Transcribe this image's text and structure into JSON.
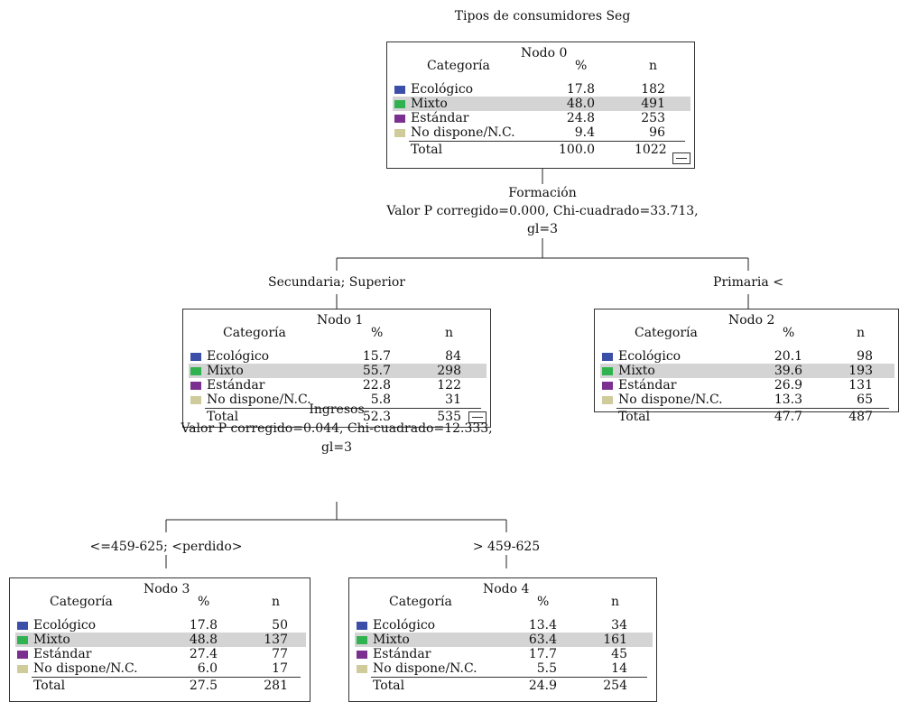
{
  "title": "Tipos de consumidores Seg",
  "legend_colors": {
    "Ecológico": "#3b4fa8",
    "Mixto": "#2fb24f",
    "Estándar": "#7b2f8e",
    "No dispone/N.C.": "#cfcb9a"
  },
  "header": {
    "categoria": "Categoría",
    "pct": "%",
    "n": "n"
  },
  "nodes": {
    "n0": {
      "name": "Nodo 0",
      "rows": [
        {
          "cat": "Ecológico",
          "pct": "17.8",
          "n": "182"
        },
        {
          "cat": "Mixto",
          "pct": "48.0",
          "n": "491"
        },
        {
          "cat": "Estándar",
          "pct": "24.8",
          "n": "253"
        },
        {
          "cat": "No dispone/N.C.",
          "pct": "9.4",
          "n": "96"
        }
      ],
      "total": {
        "label": "Total",
        "pct": "100.0",
        "n": "1022"
      }
    },
    "n1": {
      "name": "Nodo 1",
      "rows": [
        {
          "cat": "Ecológico",
          "pct": "15.7",
          "n": "84"
        },
        {
          "cat": "Mixto",
          "pct": "55.7",
          "n": "298"
        },
        {
          "cat": "Estándar",
          "pct": "22.8",
          "n": "122"
        },
        {
          "cat": "No dispone/N.C.",
          "pct": "5.8",
          "n": "31"
        }
      ],
      "total": {
        "label": "Total",
        "pct": "52.3",
        "n": "535"
      }
    },
    "n2": {
      "name": "Nodo 2",
      "rows": [
        {
          "cat": "Ecológico",
          "pct": "20.1",
          "n": "98"
        },
        {
          "cat": "Mixto",
          "pct": "39.6",
          "n": "193"
        },
        {
          "cat": "Estándar",
          "pct": "26.9",
          "n": "131"
        },
        {
          "cat": "No dispone/N.C.",
          "pct": "13.3",
          "n": "65"
        }
      ],
      "total": {
        "label": "Total",
        "pct": "47.7",
        "n": "487"
      }
    },
    "n3": {
      "name": "Nodo 3",
      "rows": [
        {
          "cat": "Ecológico",
          "pct": "17.8",
          "n": "50"
        },
        {
          "cat": "Mixto",
          "pct": "48.8",
          "n": "137"
        },
        {
          "cat": "Estándar",
          "pct": "27.4",
          "n": "77"
        },
        {
          "cat": "No dispone/N.C.",
          "pct": "6.0",
          "n": "17"
        }
      ],
      "total": {
        "label": "Total",
        "pct": "27.5",
        "n": "281"
      }
    },
    "n4": {
      "name": "Nodo 4",
      "rows": [
        {
          "cat": "Ecológico",
          "pct": "13.4",
          "n": "34"
        },
        {
          "cat": "Mixto",
          "pct": "63.4",
          "n": "161"
        },
        {
          "cat": "Estándar",
          "pct": "17.7",
          "n": "45"
        },
        {
          "cat": "No dispone/N.C.",
          "pct": "5.5",
          "n": "14"
        }
      ],
      "total": {
        "label": "Total",
        "pct": "24.9",
        "n": "254"
      }
    }
  },
  "splits": {
    "s0": {
      "var": "Formación",
      "stats": "Valor P corregido=0.000, Chi-cuadrado=33.713,",
      "gl": "gl=3"
    },
    "s1": {
      "var": "Ingresos",
      "stats": "Valor P corregido=0.044, Chi-cuadrado=12.333,",
      "gl": "gl=3"
    }
  },
  "branches": {
    "b1": "Secundaria; Superior",
    "b2": "Primaria <",
    "b3": "<=459-625; <perdido>",
    "b4": "> 459-625"
  },
  "collapse_symbol": "minus"
}
